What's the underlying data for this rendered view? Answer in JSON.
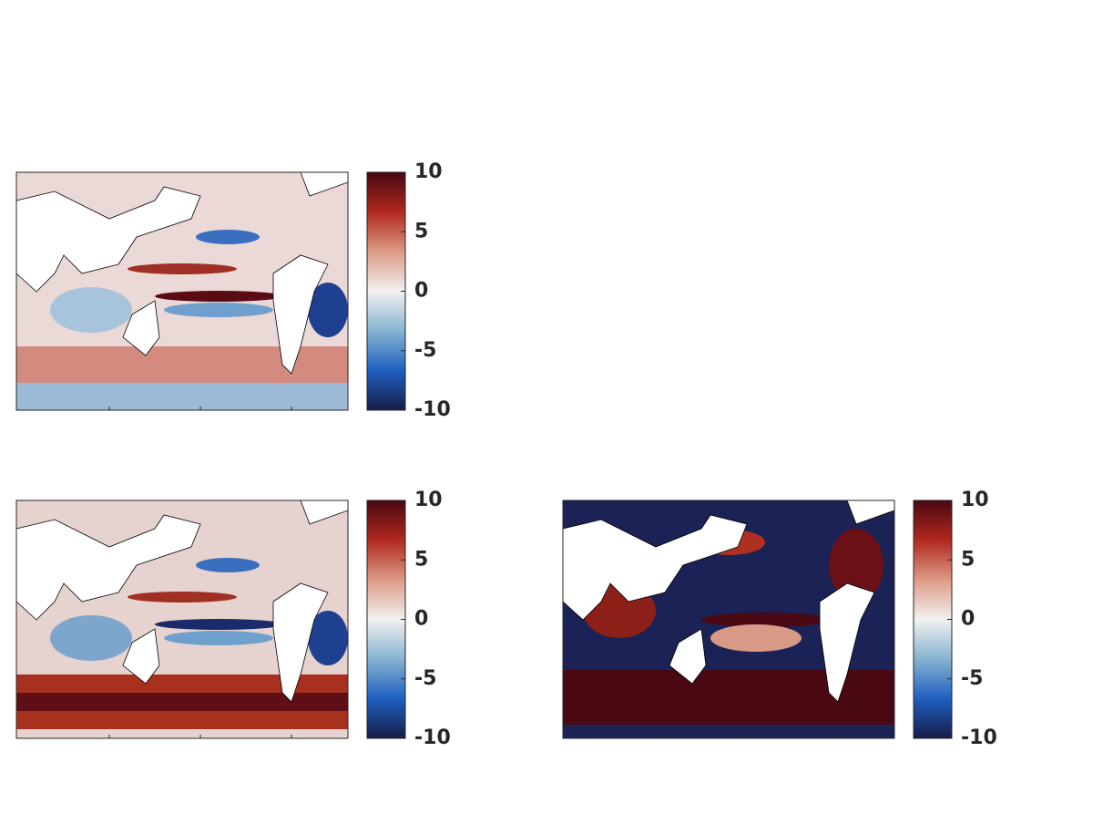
{
  "chart_data": [
    {
      "type": "map",
      "clim": [
        -10,
        10
      ],
      "cticks": [
        -10,
        -5,
        0,
        5,
        10
      ],
      "colormap": [
        "#161c48",
        "#1f5fbf",
        "#86b4d2",
        "#f2f0ef",
        "#dc9a86",
        "#b0281e",
        "#4a0812"
      ]
    },
    {
      "type": "map",
      "clim": [
        -10,
        10
      ],
      "cticks": [
        -10,
        -5,
        0,
        5,
        10
      ],
      "colormap": [
        "#161c48",
        "#1f5fbf",
        "#86b4d2",
        "#f2f0ef",
        "#dc9a86",
        "#b0281e",
        "#4a0812"
      ]
    },
    {
      "type": "map",
      "clim": [
        -10,
        10
      ],
      "cticks": [
        -10,
        -5,
        0,
        5,
        10
      ],
      "colormap": [
        "#161c48",
        "#1f5fbf",
        "#86b4d2",
        "#f2f0ef",
        "#dc9a86",
        "#b0281e",
        "#4a0812"
      ]
    }
  ]
}
